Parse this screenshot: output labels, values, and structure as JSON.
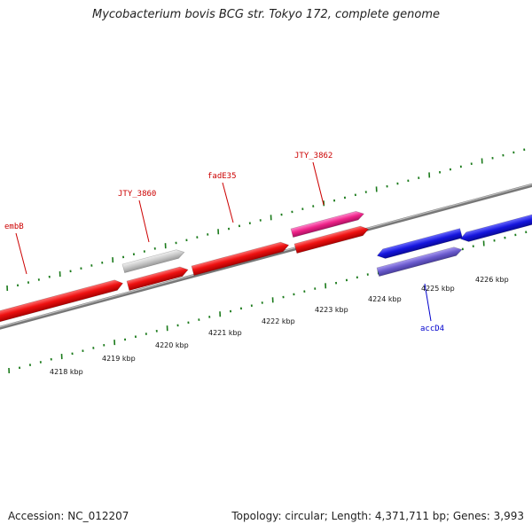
{
  "title": "Mycobacterium bovis BCG str. Tokyo 172, complete genome",
  "accession": "Accession: NC_012207",
  "summary": "Topology: circular; Length: 4,371,711 bp; Genes: 3,993",
  "kbp_ticks": [
    "4218 kbp",
    "4219 kbp",
    "4220 kbp",
    "4221 kbp",
    "4222 kbp",
    "4223 kbp",
    "4224 kbp",
    "4225 kbp",
    "4226 kbp"
  ],
  "gene_labels": [
    {
      "name": "embB",
      "color": "#cc0000"
    },
    {
      "name": "JTY_3860",
      "color": "#cc0000"
    },
    {
      "name": "fadE35",
      "color": "#cc0000"
    },
    {
      "name": "JTY_3862",
      "color": "#cc0000"
    },
    {
      "name": "accD4",
      "color": "#0000cc"
    }
  ],
  "colors": {
    "forward_cds": "#ee1111",
    "pseudo": "#c8c8c8",
    "rna": "#ee2288",
    "reverse_cds": "#1515dd",
    "reverse_alt": "#6a5acd",
    "backbone": "#808080",
    "tick": "#1a7a1a"
  }
}
